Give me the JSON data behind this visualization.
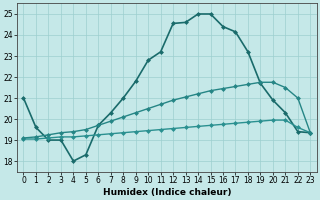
{
  "title": "",
  "xlabel": "Humidex (Indice chaleur)",
  "bg_color": "#c5e8e8",
  "grid_color": "#9dcfcf",
  "xlim": [
    -0.5,
    23.5
  ],
  "ylim": [
    17.5,
    25.5
  ],
  "yticks": [
    18,
    19,
    20,
    21,
    22,
    23,
    24,
    25
  ],
  "xticks": [
    0,
    1,
    2,
    3,
    4,
    5,
    6,
    7,
    8,
    9,
    10,
    11,
    12,
    13,
    14,
    15,
    16,
    17,
    18,
    19,
    20,
    21,
    22,
    23
  ],
  "line1_x": [
    0,
    1,
    2,
    3,
    4,
    5,
    6,
    7,
    8,
    9,
    10,
    11,
    12,
    13,
    14,
    15,
    16,
    17,
    18,
    19,
    20,
    21,
    22,
    23
  ],
  "line1_y": [
    21.0,
    19.6,
    19.0,
    19.0,
    18.0,
    18.3,
    19.7,
    20.3,
    21.0,
    21.8,
    22.8,
    23.2,
    24.55,
    24.6,
    25.0,
    25.0,
    24.4,
    24.15,
    23.2,
    21.7,
    20.9,
    20.3,
    19.4,
    19.35
  ],
  "line1_color": "#1a6b6b",
  "line2_x": [
    0,
    1,
    2,
    3,
    4,
    5,
    6,
    7,
    8,
    9,
    10,
    11,
    12,
    13,
    14,
    15,
    16,
    17,
    18,
    19,
    20,
    21,
    22,
    23
  ],
  "line2_y": [
    19.05,
    19.05,
    19.1,
    19.15,
    19.15,
    19.2,
    19.25,
    19.3,
    19.35,
    19.4,
    19.45,
    19.5,
    19.55,
    19.6,
    19.65,
    19.7,
    19.75,
    19.8,
    19.85,
    19.9,
    19.95,
    19.95,
    19.6,
    19.35
  ],
  "line2_color": "#2a9090",
  "line3_x": [
    0,
    1,
    2,
    3,
    4,
    5,
    6,
    7,
    8,
    9,
    10,
    11,
    12,
    13,
    14,
    15,
    16,
    17,
    18,
    19,
    20,
    21,
    22,
    23
  ],
  "line3_y": [
    19.1,
    19.15,
    19.25,
    19.35,
    19.4,
    19.5,
    19.7,
    19.9,
    20.1,
    20.3,
    20.5,
    20.7,
    20.9,
    21.05,
    21.2,
    21.35,
    21.45,
    21.55,
    21.65,
    21.75,
    21.75,
    21.5,
    21.0,
    19.35
  ],
  "line3_color": "#258585"
}
